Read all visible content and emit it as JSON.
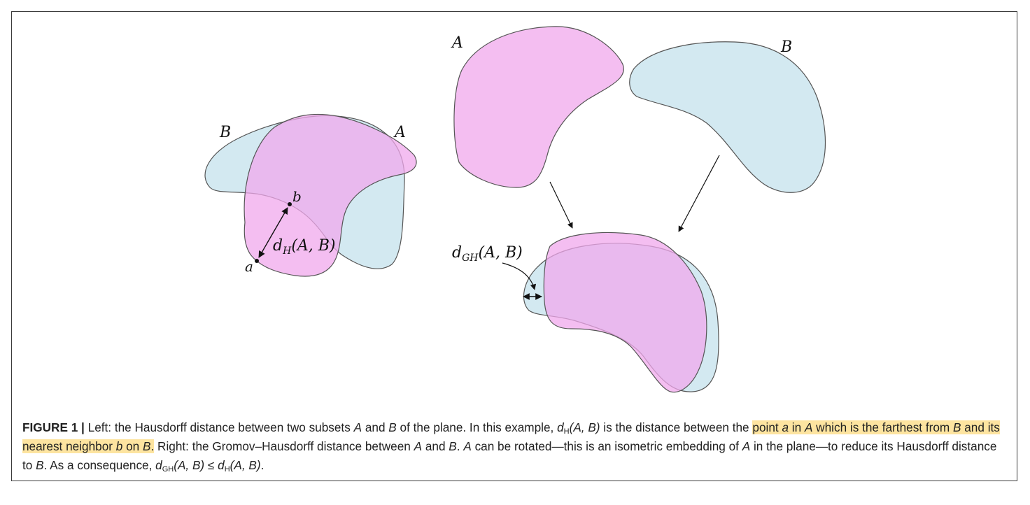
{
  "figure": {
    "left_panel": {
      "label_A": "A",
      "label_B": "B",
      "point_a": "a",
      "point_b": "b",
      "distance_label": "d_H(A, B)",
      "distance_main": "d",
      "distance_sub": "H",
      "distance_args": "(A, B)"
    },
    "right_panel": {
      "label_A": "A",
      "label_B": "B",
      "distance_label": "d_GH(A, B)",
      "distance_main": "d",
      "distance_sub": "GH",
      "distance_args": "(A, B)"
    },
    "colors": {
      "set_A_fill": "#f0a8ec",
      "set_B_fill": "#c4e1ec",
      "outline": "#555555",
      "highlight": "#fde4a0"
    }
  },
  "caption": {
    "figure_number": "FIGURE 1 |",
    "s1": " Left: the Hausdorff distance between two subsets ",
    "s2": "A",
    "s3": " and ",
    "s4": "B",
    "s5": " of the plane. In this example, ",
    "s6": "d",
    "s7": "H",
    "s8": "(A, B)",
    "s9": " is the distance between the ",
    "h1": "point ",
    "h2": "a",
    "h3": " in ",
    "h4": "A",
    "h5": " which is the farthest from ",
    "h6": "B",
    "h7": " and its nearest neighbor ",
    "h8": "b",
    "h9": " on ",
    "h10": "B",
    "h11": ".",
    "s10": " Right: the Gromov–Hausdorff distance between ",
    "s11": "A",
    "s12": " and ",
    "s13": "B",
    "s14": ". ",
    "s15": "A",
    "s16": " can be rotated—this is an isometric embedding of ",
    "s17": "A",
    "s18": " in the plane—to reduce its Hausdorff distance to ",
    "s19": "B",
    "s20": ". As a consequence, ",
    "s21": "d",
    "s22": "GH",
    "s23": "(A, B)",
    "s24": " ≤ ",
    "s25": "d",
    "s26": "H",
    "s27": "(A, B)",
    "s28": "."
  }
}
